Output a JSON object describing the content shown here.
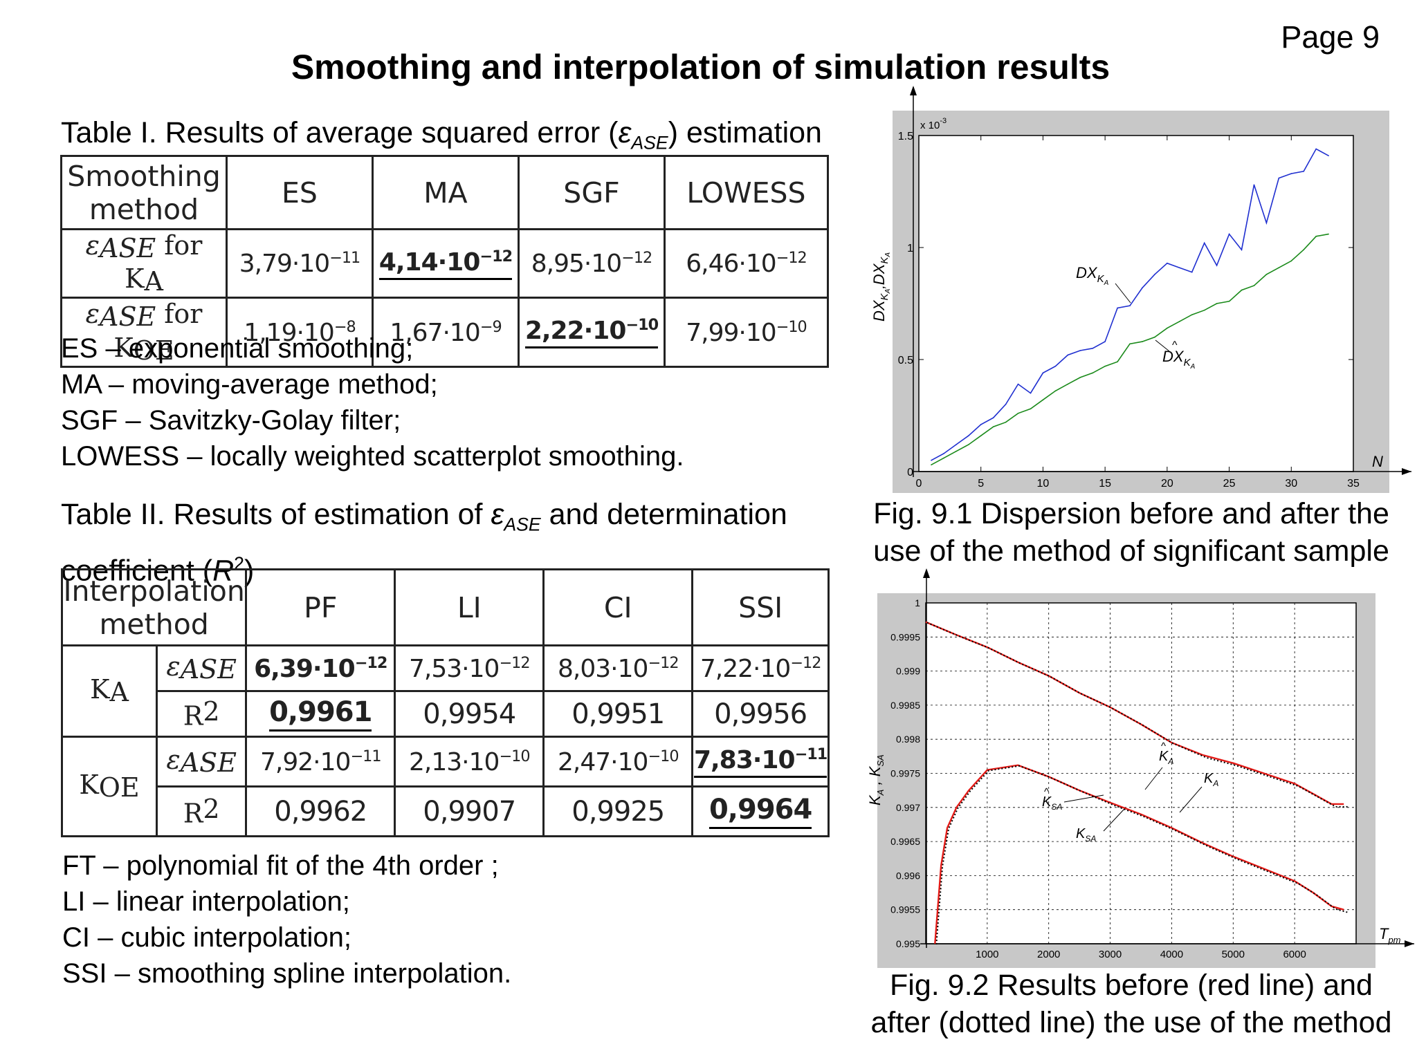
{
  "page": {
    "number_label": "Page 9",
    "title": "Smoothing and interpolation of simulation results"
  },
  "table1": {
    "caption_prefix": "Table I. Results of average squared error (",
    "caption_eps": "ε",
    "caption_sub": "ASE",
    "caption_suffix": ") estimation",
    "headers": [
      "Smoothing method",
      "ES",
      "MA",
      "SGF",
      "LOWESS"
    ],
    "row_labels": [
      {
        "eps": "ε",
        "sub": "ASE",
        "for": " for K",
        "k_sub": "A"
      },
      {
        "eps": "ε",
        "sub": "ASE",
        "for": " for K",
        "k_sub": "OE"
      }
    ],
    "rows": [
      [
        "3,79·10",
        "4,14·10",
        "8,95·10",
        "6,46·10"
      ],
      [
        "1,19·10",
        "1,67·10",
        "2,22·10",
        "7,99·10"
      ]
    ],
    "exps": [
      [
        "−11",
        "−12",
        "−12",
        "−12"
      ],
      [
        "−8",
        "−9",
        "−10",
        "−10"
      ]
    ]
  },
  "legend1": [
    "ES – exponential smoothing;",
    "MA – moving-average method;",
    "SGF – Savitzky-Golay filter;",
    "LOWESS – locally weighted scatterplot smoothing."
  ],
  "table2": {
    "caption_line1_prefix": "Table II. Results of estimation of ",
    "caption_eps": "ε",
    "caption_sub": "ASE",
    "caption_line1_suffix": " and determination",
    "caption_line2_prefix": "coefficient (",
    "caption_r": "R",
    "caption_sup": "2",
    "caption_line2_suffix": ")",
    "headers": [
      "Interpolation method",
      "PF",
      "LI",
      "CI",
      "SSI"
    ],
    "groups": [
      {
        "k": "K",
        "k_sub": "A",
        "eps_vals": [
          "6,39·10",
          "7,53·10",
          "8,03·10",
          "7,22·10"
        ],
        "eps_exps": [
          "−12",
          "−12",
          "−12",
          "−12"
        ],
        "r2_vals": [
          "0,9961",
          "0,9954",
          "0,9951",
          "0,9956"
        ]
      },
      {
        "k": "K",
        "k_sub": "OE",
        "eps_vals": [
          "7,92·10",
          "2,13·10",
          "2,47·10",
          "7,83·10"
        ],
        "eps_exps": [
          "−11",
          "−10",
          "−10",
          "−11"
        ],
        "r2_vals": [
          "0,9962",
          "0,9907",
          "0,9925",
          "0,9964"
        ]
      }
    ],
    "eps_label": "ε",
    "eps_sub": "ASE",
    "r_label": "R",
    "r_sup": "2"
  },
  "legend2": [
    "FT – polynomial fit of the 4th order ;",
    "LI – linear interpolation;",
    "CI – cubic interpolation;",
    "SSI – smoothing spline interpolation."
  ],
  "fig1": {
    "caption": [
      "Fig. 9.1 Dispersion before and after the",
      "use of the method of significant sample"
    ],
    "scale_label": "x 10",
    "scale_exp": "-3",
    "ylabel": "DX",
    "ylabel_sub": "K",
    "ylabel_sub2": "A",
    "ylabel_hat": "DX",
    "xlabel": "N",
    "series_label_top": "DX",
    "series_label_bottom": "DX",
    "series_sub": "K",
    "series_sub2": "A",
    "xticks": [
      "0",
      "5",
      "10",
      "15",
      "20",
      "25",
      "30",
      "35"
    ],
    "yticks": [
      "0",
      "0.5",
      "1",
      "1.5"
    ]
  },
  "fig2": {
    "caption": [
      "Fig. 9.2 Results before (red line) and",
      "after (dotted line) the use of the method"
    ],
    "xlabel": "T",
    "xlabel_sub": "pm",
    "ylabel": "K",
    "ylabel_sub": "A",
    "ylabel2": "K",
    "ylabel2_sub": "SA",
    "curve_labels": [
      "K",
      "K",
      "K",
      "K"
    ],
    "curve_subs": [
      "A",
      "A",
      "SA",
      "SA"
    ],
    "xticks": [
      "1000",
      "2000",
      "3000",
      "4000",
      "5000",
      "6000"
    ],
    "yticks": [
      "1",
      "0.9995",
      "0.999",
      "0.9985",
      "0.998",
      "0.9975",
      "0.997",
      "0.9965",
      "0.996",
      "0.9955",
      "0.995"
    ]
  },
  "chart_data": [
    {
      "type": "line",
      "title": "",
      "xlabel": "N",
      "ylabel": "DX_KA, DX̂_KA",
      "xlim": [
        0,
        35
      ],
      "ylim": [
        0,
        0.0015
      ],
      "grid": false,
      "series": [
        {
          "name": "DX_KA",
          "color": "#1f2fd0",
          "x": [
            1,
            2,
            3,
            4,
            5,
            6,
            7,
            8,
            9,
            10,
            11,
            12,
            13,
            14,
            15,
            16,
            17,
            18,
            19,
            20,
            21,
            22,
            23,
            24,
            25,
            26,
            27,
            28,
            29,
            30,
            31,
            32,
            33
          ],
          "y": [
            5e-05,
            8e-05,
            0.00012,
            0.00016,
            0.00021,
            0.00024,
            0.0003,
            0.00039,
            0.00035,
            0.00044,
            0.00047,
            0.00052,
            0.00054,
            0.00055,
            0.00058,
            0.00073,
            0.00074,
            0.00082,
            0.00088,
            0.00093,
            0.00091,
            0.00089,
            0.00102,
            0.00092,
            0.00106,
            0.00099,
            0.00128,
            0.00111,
            0.00131,
            0.00133,
            0.00134,
            0.00144,
            0.00141
          ]
        },
        {
          "name": "DX̂_KA",
          "color": "#1a8a1a",
          "x": [
            1,
            2,
            3,
            4,
            5,
            6,
            7,
            8,
            9,
            10,
            11,
            12,
            13,
            14,
            15,
            16,
            17,
            18,
            19,
            20,
            21,
            22,
            23,
            24,
            25,
            26,
            27,
            28,
            29,
            30,
            31,
            32,
            33
          ],
          "y": [
            3e-05,
            6e-05,
            9e-05,
            0.00012,
            0.00016,
            0.0002,
            0.00022,
            0.00026,
            0.00028,
            0.00032,
            0.00036,
            0.00039,
            0.00042,
            0.00044,
            0.00047,
            0.00049,
            0.00057,
            0.00058,
            0.0006,
            0.00064,
            0.00067,
            0.0007,
            0.00072,
            0.00075,
            0.00076,
            0.00081,
            0.00083,
            0.00088,
            0.00091,
            0.00094,
            0.00099,
            0.00105,
            0.00106
          ]
        }
      ]
    },
    {
      "type": "line",
      "title": "",
      "xlabel": "T_pm",
      "ylabel": "K_A, K_SA",
      "xlim": [
        0,
        7000
      ],
      "ylim": [
        0.995,
        1
      ],
      "grid": true,
      "series": [
        {
          "name": "K_A",
          "color": "#e41b17",
          "x": [
            0,
            500,
            1000,
            1500,
            2000,
            2500,
            3000,
            3500,
            4000,
            4500,
            5000,
            5500,
            6000,
            6300,
            6600,
            6800
          ],
          "y": [
            0.99972,
            0.99953,
            0.99935,
            0.99913,
            0.99893,
            0.99868,
            0.99847,
            0.99822,
            0.99795,
            0.99777,
            0.99765,
            0.9975,
            0.99735,
            0.9972,
            0.99705,
            0.99705
          ]
        },
        {
          "name": "K_SA",
          "color": "#e41b17",
          "x": [
            150,
            250,
            350,
            500,
            700,
            1000,
            1500,
            2000,
            2500,
            3000,
            3500,
            4000,
            4500,
            5000,
            5500,
            6000,
            6300,
            6600,
            6800
          ],
          "y": [
            0.995,
            0.99615,
            0.9967,
            0.997,
            0.99725,
            0.99755,
            0.99762,
            0.99745,
            0.99725,
            0.99707,
            0.9969,
            0.9967,
            0.99648,
            0.99628,
            0.9961,
            0.99592,
            0.99575,
            0.99555,
            0.9955
          ]
        }
      ]
    }
  ]
}
